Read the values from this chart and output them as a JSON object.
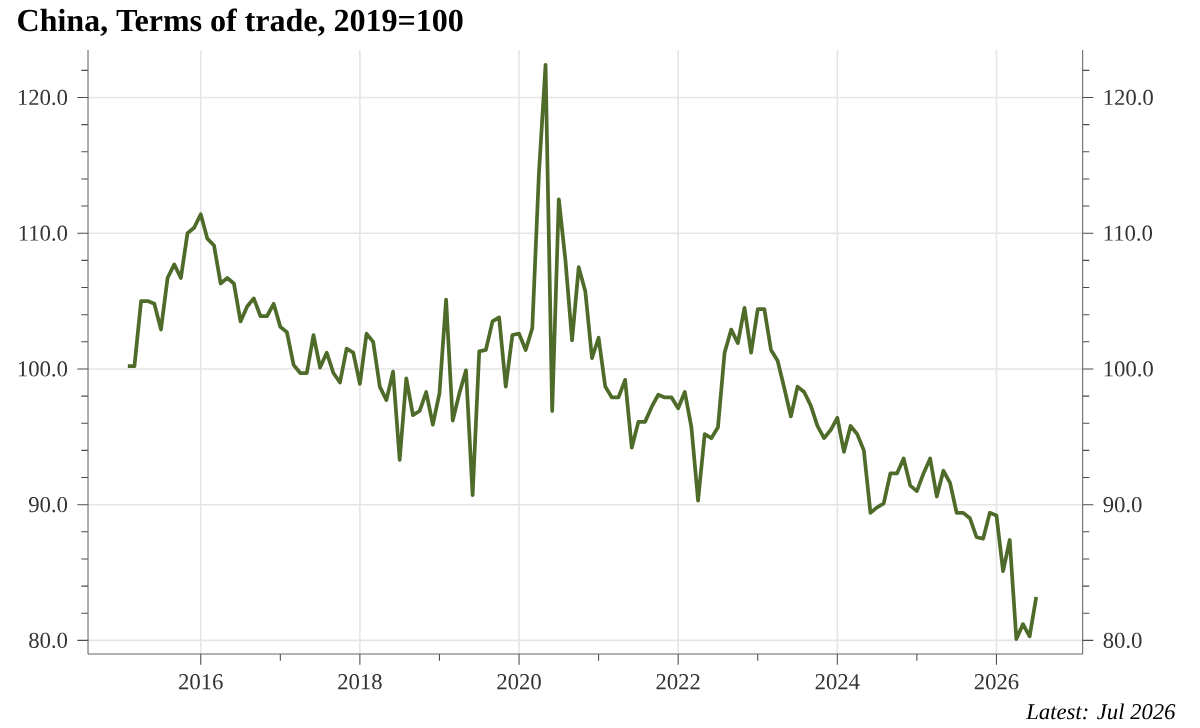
{
  "chart_data": {
    "type": "line",
    "title": "China, Terms of trade, 2019=100",
    "annotations": [
      "Latest: Jul 2026"
    ],
    "x": [
      "2015-02",
      "2015-03",
      "2015-04",
      "2015-05",
      "2015-06",
      "2015-07",
      "2015-08",
      "2015-09",
      "2015-10",
      "2015-11",
      "2015-12",
      "2016-01",
      "2016-02",
      "2016-03",
      "2016-04",
      "2016-05",
      "2016-06",
      "2016-07",
      "2016-08",
      "2016-09",
      "2016-10",
      "2016-11",
      "2016-12",
      "2017-01",
      "2017-02",
      "2017-03",
      "2017-04",
      "2017-05",
      "2017-06",
      "2017-07",
      "2017-08",
      "2017-09",
      "2017-10",
      "2017-11",
      "2017-12",
      "2018-01",
      "2018-02",
      "2018-03",
      "2018-04",
      "2018-05",
      "2018-06",
      "2018-07",
      "2018-08",
      "2018-09",
      "2018-10",
      "2018-11",
      "2018-12",
      "2019-01",
      "2019-02",
      "2019-03",
      "2019-04",
      "2019-05",
      "2019-06",
      "2019-07",
      "2019-08",
      "2019-09",
      "2019-10",
      "2019-11",
      "2019-12",
      "2020-01",
      "2020-02",
      "2020-03",
      "2020-04",
      "2020-05",
      "2020-06",
      "2020-07",
      "2020-08",
      "2020-09",
      "2020-10",
      "2020-11",
      "2020-12",
      "2021-01",
      "2021-02",
      "2021-03",
      "2021-04",
      "2021-05",
      "2021-06",
      "2021-07",
      "2021-08",
      "2021-09",
      "2021-10",
      "2021-11",
      "2021-12",
      "2022-01",
      "2022-02",
      "2022-03",
      "2022-04",
      "2022-05",
      "2022-06",
      "2022-07",
      "2022-08",
      "2022-09",
      "2022-10",
      "2022-11",
      "2022-12",
      "2023-01",
      "2023-02",
      "2023-03",
      "2023-04",
      "2023-05",
      "2023-06",
      "2023-07",
      "2023-08",
      "2023-09",
      "2023-10",
      "2023-11",
      "2023-12",
      "2024-01",
      "2024-02",
      "2024-03",
      "2024-04",
      "2024-05",
      "2024-06",
      "2024-07",
      "2024-08",
      "2024-09",
      "2024-10",
      "2024-11",
      "2024-12",
      "2025-01",
      "2025-02",
      "2025-03",
      "2025-04",
      "2025-05",
      "2025-06",
      "2025-07",
      "2025-08",
      "2025-09",
      "2025-10",
      "2025-11",
      "2025-12",
      "2026-01",
      "2026-02",
      "2026-03",
      "2026-04",
      "2026-05",
      "2026-06",
      "2026-07"
    ],
    "series": [
      {
        "color": "#4e6b2a",
        "values": [
          100.2,
          100.2,
          105.0,
          105.0,
          104.8,
          102.9,
          106.7,
          107.7,
          106.7,
          110.0,
          110.4,
          111.4,
          109.6,
          109.1,
          106.3,
          106.7,
          106.3,
          103.5,
          104.6,
          105.2,
          103.9,
          103.9,
          104.8,
          103.1,
          102.7,
          100.3,
          99.7,
          99.7,
          102.5,
          100.1,
          101.2,
          99.7,
          99.0,
          101.5,
          101.2,
          98.9,
          102.6,
          102.0,
          98.7,
          97.7,
          99.8,
          93.3,
          99.3,
          96.6,
          96.9,
          98.3,
          95.9,
          98.2,
          105.1,
          96.2,
          98.2,
          99.9,
          90.7,
          101.3,
          101.4,
          103.5,
          103.8,
          98.7,
          102.5,
          102.6,
          101.4,
          103.0,
          114.4,
          122.4,
          96.9,
          112.5,
          108.0,
          102.1,
          107.5,
          105.7,
          100.8,
          102.3,
          98.7,
          97.9,
          97.9,
          99.2,
          94.2,
          96.1,
          96.1,
          97.2,
          98.1,
          97.9,
          97.9,
          97.1,
          98.3,
          95.7,
          90.3,
          95.2,
          94.9,
          95.7,
          101.2,
          102.9,
          101.9,
          104.5,
          101.2,
          104.4,
          104.4,
          101.4,
          100.6,
          98.6,
          96.5,
          98.7,
          98.3,
          97.3,
          95.8,
          94.9,
          95.5,
          96.4,
          93.9,
          95.8,
          95.2,
          94.0,
          89.4,
          89.8,
          90.1,
          92.3,
          92.3,
          93.4,
          91.4,
          91.0,
          92.3,
          93.4,
          90.6,
          92.5,
          91.6,
          89.4,
          89.4,
          89.0,
          87.6,
          87.5,
          89.4,
          89.2,
          85.1,
          87.4,
          80.1,
          81.2,
          80.3,
          83.2
        ]
      }
    ],
    "xlim": [
      "2014-08",
      "2027-02"
    ],
    "xticks": [
      "2016",
      {
        "value": "2017",
        "label": null
      },
      "2018",
      {
        "value": "2019",
        "label": null
      },
      "2020",
      {
        "value": "2021",
        "label": null
      },
      "2022",
      {
        "value": "2023",
        "label": null
      },
      "2024",
      {
        "value": "2025",
        "label": null
      },
      "2026"
    ],
    "ylim": [
      79,
      123.5
    ],
    "yticks": [
      {
        "value": 80,
        "label": "80.0"
      },
      {
        "value": 82,
        "label": null
      },
      {
        "value": 84,
        "label": null
      },
      {
        "value": 86,
        "label": null
      },
      {
        "value": 88,
        "label": null
      },
      {
        "value": 90,
        "label": "90.0"
      },
      {
        "value": 92,
        "label": null
      },
      {
        "value": 94,
        "label": null
      },
      {
        "value": 96,
        "label": null
      },
      {
        "value": 98,
        "label": null
      },
      {
        "value": 100,
        "label": "100.0"
      },
      {
        "value": 102,
        "label": null
      },
      {
        "value": 104,
        "label": null
      },
      {
        "value": 106,
        "label": null
      },
      {
        "value": 108,
        "label": null
      },
      {
        "value": 110,
        "label": "110.0"
      },
      {
        "value": 112,
        "label": null
      },
      {
        "value": 114,
        "label": null
      },
      {
        "value": 116,
        "label": null
      },
      {
        "value": 118,
        "label": null
      },
      {
        "value": 120,
        "label": "120.0"
      },
      {
        "value": 122,
        "label": null
      }
    ],
    "y2lim": [
      79,
      123.5
    ],
    "y2ticks": [
      {
        "value": 80,
        "label": "80.0"
      },
      {
        "value": 82,
        "label": null
      },
      {
        "value": 84,
        "label": null
      },
      {
        "value": 86,
        "label": null
      },
      {
        "value": 88,
        "label": null
      },
      {
        "value": 90,
        "label": "90.0"
      },
      {
        "value": 92,
        "label": null
      },
      {
        "value": 94,
        "label": null
      },
      {
        "value": 96,
        "label": null
      },
      {
        "value": 98,
        "label": null
      },
      {
        "value": 100,
        "label": "100.0"
      },
      {
        "value": 102,
        "label": null
      },
      {
        "value": 104,
        "label": null
      },
      {
        "value": 106,
        "label": null
      },
      {
        "value": 108,
        "label": null
      },
      {
        "value": 110,
        "label": "110.0"
      },
      {
        "value": 112,
        "label": null
      },
      {
        "value": 114,
        "label": null
      },
      {
        "value": 116,
        "label": null
      },
      {
        "value": 118,
        "label": null
      },
      {
        "value": 120,
        "label": "120.0"
      },
      {
        "value": 122,
        "label": null
      }
    ],
    "grid": true
  }
}
